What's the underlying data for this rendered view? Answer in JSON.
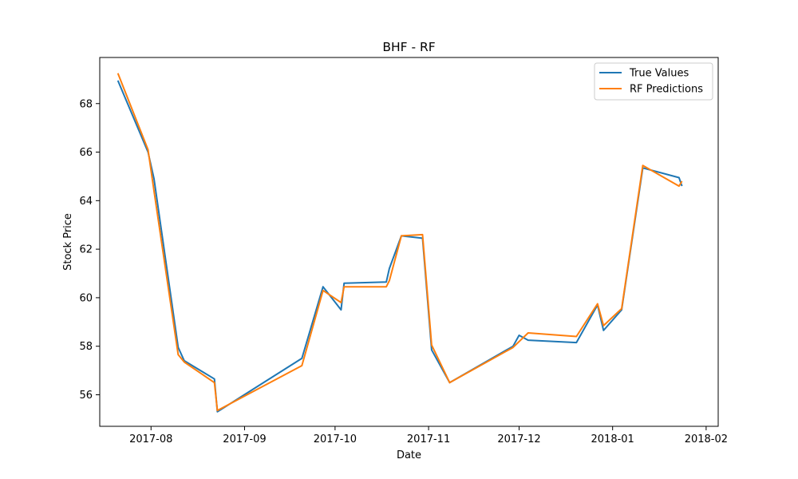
{
  "chart_data": {
    "type": "line",
    "title": "BHF - RF",
    "xlabel": "Date",
    "ylabel": "Stock Price",
    "x_axis": "date",
    "xlim": [
      "2017-07-15",
      "2018-02-05"
    ],
    "ylim": [
      54.7,
      69.9
    ],
    "x_ticks": [
      {
        "date": "2017-08-01",
        "label": "2017-08"
      },
      {
        "date": "2017-09-01",
        "label": "2017-09"
      },
      {
        "date": "2017-10-01",
        "label": "2017-10"
      },
      {
        "date": "2017-11-01",
        "label": "2017-11"
      },
      {
        "date": "2017-12-01",
        "label": "2017-12"
      },
      {
        "date": "2018-01-01",
        "label": "2018-01"
      },
      {
        "date": "2018-02-01",
        "label": "2018-02"
      }
    ],
    "y_ticks": [
      56,
      58,
      60,
      62,
      64,
      66,
      68
    ],
    "grid": false,
    "legend_position": "top-right",
    "series": [
      {
        "name": "True Values",
        "color": "#1f77b4",
        "points": [
          [
            "2017-07-21",
            68.95
          ],
          [
            "2017-07-31",
            66.0
          ],
          [
            "2017-08-02",
            64.9
          ],
          [
            "2017-08-10",
            57.95
          ],
          [
            "2017-08-12",
            57.4
          ],
          [
            "2017-08-22",
            56.65
          ],
          [
            "2017-08-23",
            55.3
          ],
          [
            "2017-09-20",
            57.5
          ],
          [
            "2017-09-27",
            60.45
          ],
          [
            "2017-10-03",
            59.5
          ],
          [
            "2017-10-04",
            60.6
          ],
          [
            "2017-10-18",
            60.65
          ],
          [
            "2017-10-19",
            61.2
          ],
          [
            "2017-10-23",
            62.55
          ],
          [
            "2017-10-30",
            62.45
          ],
          [
            "2017-11-02",
            57.85
          ],
          [
            "2017-11-08",
            56.5
          ],
          [
            "2017-11-29",
            58.0
          ],
          [
            "2017-12-01",
            58.45
          ],
          [
            "2017-12-04",
            58.25
          ],
          [
            "2017-12-20",
            58.15
          ],
          [
            "2017-12-27",
            59.7
          ],
          [
            "2017-12-29",
            58.65
          ],
          [
            "2018-01-04",
            59.5
          ],
          [
            "2018-01-11",
            65.35
          ],
          [
            "2018-01-23",
            64.95
          ],
          [
            "2018-01-24",
            64.6
          ]
        ]
      },
      {
        "name": "RF Predictions",
        "color": "#ff7f0e",
        "points": [
          [
            "2017-07-21",
            69.25
          ],
          [
            "2017-07-31",
            66.1
          ],
          [
            "2017-08-02",
            64.4
          ],
          [
            "2017-08-10",
            57.65
          ],
          [
            "2017-08-12",
            57.35
          ],
          [
            "2017-08-22",
            56.5
          ],
          [
            "2017-08-23",
            55.35
          ],
          [
            "2017-09-20",
            57.2
          ],
          [
            "2017-09-27",
            60.3
          ],
          [
            "2017-10-03",
            59.8
          ],
          [
            "2017-10-04",
            60.45
          ],
          [
            "2017-10-18",
            60.45
          ],
          [
            "2017-10-19",
            60.7
          ],
          [
            "2017-10-23",
            62.55
          ],
          [
            "2017-10-30",
            62.6
          ],
          [
            "2017-11-02",
            58.05
          ],
          [
            "2017-11-08",
            56.5
          ],
          [
            "2017-11-29",
            57.95
          ],
          [
            "2017-12-04",
            58.55
          ],
          [
            "2017-12-20",
            58.4
          ],
          [
            "2017-12-27",
            59.75
          ],
          [
            "2017-12-29",
            58.85
          ],
          [
            "2018-01-04",
            59.55
          ],
          [
            "2018-01-11",
            65.45
          ],
          [
            "2018-01-23",
            64.6
          ],
          [
            "2018-01-24",
            64.8
          ]
        ]
      }
    ]
  }
}
